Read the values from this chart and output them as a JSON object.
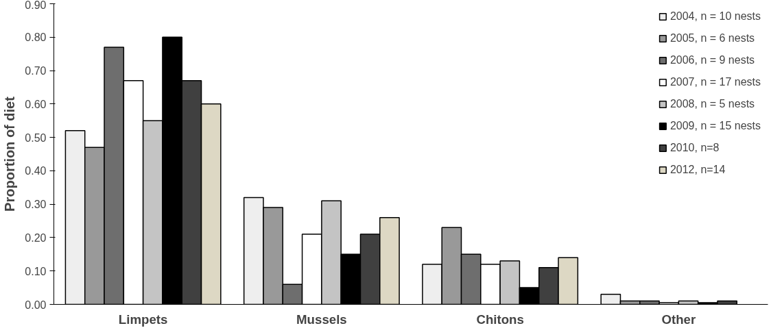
{
  "chart_data": {
    "type": "bar",
    "ylabel": "Proportion of diet",
    "categories": [
      "Limpets",
      "Mussels",
      "Chitons",
      "Other"
    ],
    "series": [
      {
        "name": "2004, n = 10 nests",
        "color": "#eeeeee",
        "values": [
          0.52,
          0.32,
          0.12,
          0.03
        ]
      },
      {
        "name": "2005, n = 6 nests",
        "color": "#999999",
        "values": [
          0.47,
          0.29,
          0.23,
          0.01
        ]
      },
      {
        "name": "2006, n = 9 nests",
        "color": "#6e6e6e",
        "values": [
          0.77,
          0.06,
          0.15,
          0.01
        ]
      },
      {
        "name": "2007, n = 17 nests",
        "color": "#ffffff",
        "values": [
          0.67,
          0.21,
          0.12,
          0.005
        ]
      },
      {
        "name": "2008, n = 5 nests",
        "color": "#c4c4c4",
        "values": [
          0.55,
          0.31,
          0.13,
          0.01
        ]
      },
      {
        "name": "2009, n = 15 nests",
        "color": "#000000",
        "values": [
          0.8,
          0.15,
          0.05,
          0.005
        ]
      },
      {
        "name": "2010, n=8",
        "color": "#404040",
        "values": [
          0.67,
          0.21,
          0.11,
          0.01
        ]
      },
      {
        "name": "2012, n=14",
        "color": "#ddd8c4",
        "values": [
          0.6,
          0.26,
          0.14,
          null
        ]
      }
    ],
    "ylim": [
      0,
      0.9
    ],
    "yticks": [
      {
        "value": 0,
        "label": "0.00"
      },
      {
        "value": 0.1,
        "label": "0.10"
      },
      {
        "value": 0.2,
        "label": "0.20"
      },
      {
        "value": 0.3,
        "label": "0.30"
      },
      {
        "value": 0.4,
        "label": "0.40"
      },
      {
        "value": 0.5,
        "label": "0.50"
      },
      {
        "value": 0.6,
        "label": "0.60"
      },
      {
        "value": 0.7,
        "label": "0.70"
      },
      {
        "value": 0.8,
        "label": "0.80"
      },
      {
        "value": 0.9,
        "label": "0.90"
      }
    ],
    "grid": false,
    "legend": "top right"
  }
}
